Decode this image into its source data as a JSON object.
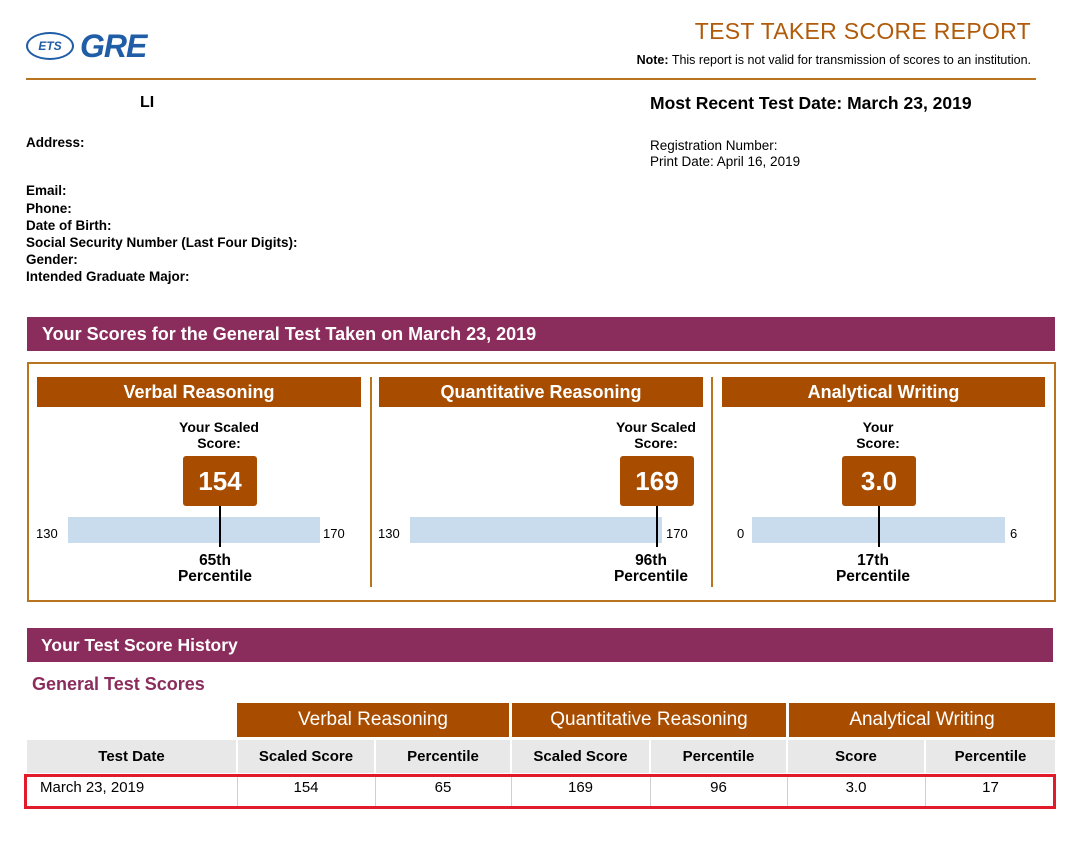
{
  "header": {
    "logo": {
      "ets": "ETS",
      "gre": "GRE"
    },
    "title": "TEST TAKER SCORE REPORT",
    "note_label": "Note:",
    "note_text": "This report is not valid for transmission of scores to an institution."
  },
  "person": {
    "name": "LI",
    "labels": {
      "address": "Address:",
      "email": "Email:",
      "phone": "Phone:",
      "dob": "Date of Birth:",
      "ssn": "Social Security Number (Last Four Digits):",
      "gender": "Gender:",
      "major": "Intended Graduate Major:"
    },
    "most_recent": "Most Recent Test Date: March 23, 2019",
    "registration_label": "Registration Number:",
    "print_date": "Print Date: April 16, 2019"
  },
  "scores_section": {
    "title": "Your Scores for the General Test Taken on March 23, 2019",
    "panels": [
      {
        "heading": "Verbal Reasoning",
        "label_line1": "Your Scaled",
        "label_line2": "Score:",
        "score": "154",
        "min": "130",
        "max": "170",
        "percentile_line1": "65th",
        "percentile_line2": "Percentile",
        "fraction": 0.6
      },
      {
        "heading": "Quantitative Reasoning",
        "label_line1": "Your Scaled",
        "label_line2": "Score:",
        "score": "169",
        "min": "130",
        "max": "170",
        "percentile_line1": "96th",
        "percentile_line2": "Percentile",
        "fraction": 0.975
      },
      {
        "heading": "Analytical Writing",
        "label_line1": "Your",
        "label_line2": "Score:",
        "score": "3.0",
        "min": "0",
        "max": "6",
        "percentile_line1": "17th",
        "percentile_line2": "Percentile",
        "fraction": 0.5
      }
    ]
  },
  "history": {
    "title": "Your Test Score History",
    "subtitle": "General Test Scores",
    "groups": [
      "Verbal Reasoning",
      "Quantitative Reasoning",
      "Analytical Writing"
    ],
    "columns": [
      "Test Date",
      "Scaled Score",
      "Percentile",
      "Scaled Score",
      "Percentile",
      "Score",
      "Percentile"
    ],
    "rows": [
      [
        "March 23, 2019",
        "154",
        "65",
        "169",
        "96",
        "3.0",
        "17"
      ]
    ]
  },
  "colors": {
    "accent": "#a84d00",
    "banner": "#8b2d5c",
    "bar": "#c9dcee",
    "highlight": "#e21b2a",
    "logo": "#1f5da6"
  }
}
